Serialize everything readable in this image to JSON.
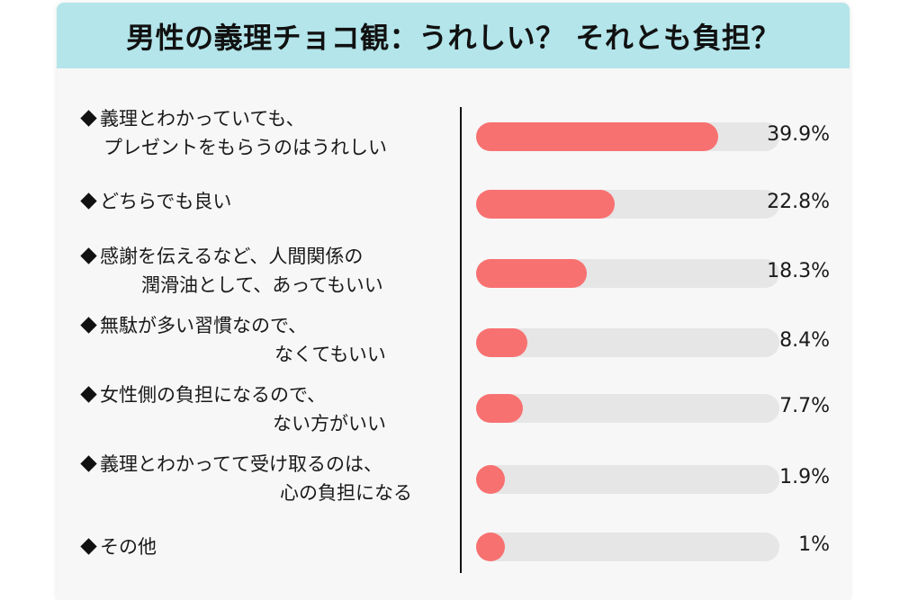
{
  "title": "男性の義理チョコ観：うれしい？ それとも負担？",
  "colors": {
    "header_bg": "#b3e5ea",
    "card_bg": "#f7f7f7",
    "bar_fill": "#f87171",
    "bar_track": "#e6e6e6"
  },
  "items": [
    {
      "line1": "義理とわかっていても、",
      "line2": "プレゼントをもらうのはうれしい",
      "value": 39.9,
      "value_label": "39.9%"
    },
    {
      "line1": "どちらでも良い",
      "line2": "",
      "value": 22.8,
      "value_label": "22.8%"
    },
    {
      "line1": "感謝を伝えるなど、人間関係の",
      "line2": "潤滑油として、あってもいい",
      "value": 18.3,
      "value_label": "18.3%"
    },
    {
      "line1": "無駄が多い習慣なので、",
      "line2": "なくてもいい",
      "value": 8.4,
      "value_label": "8.4%"
    },
    {
      "line1": "女性側の負担になるので、",
      "line2": "ない方がいい",
      "value": 7.7,
      "value_label": "7.7%"
    },
    {
      "line1": "義理とわかってて受け取るのは、",
      "line2": "心の負担になる",
      "value": 1.9,
      "value_label": "1.9%"
    },
    {
      "line1": "その他",
      "line2": "",
      "value": 1,
      "value_label": "1%"
    }
  ],
  "chart_data": {
    "type": "bar",
    "orientation": "horizontal",
    "title": "男性の義理チョコ観：うれしい？ それとも負担？",
    "categories": [
      "義理とわかっていても、プレゼントをもらうのはうれしい",
      "どちらでも良い",
      "感謝を伝えるなど、人間関係の潤滑油として、あってもいい",
      "無駄が多い習慣なので、なくてもいい",
      "女性側の負担になるので、ない方がいい",
      "義理とわかってて受け取るのは、心の負担になる",
      "その他"
    ],
    "values": [
      39.9,
      22.8,
      18.3,
      8.4,
      7.7,
      1.9,
      1
    ],
    "unit": "%",
    "xlabel": "",
    "ylabel": "",
    "xlim": [
      0,
      50
    ],
    "grid": false,
    "legend": null
  }
}
